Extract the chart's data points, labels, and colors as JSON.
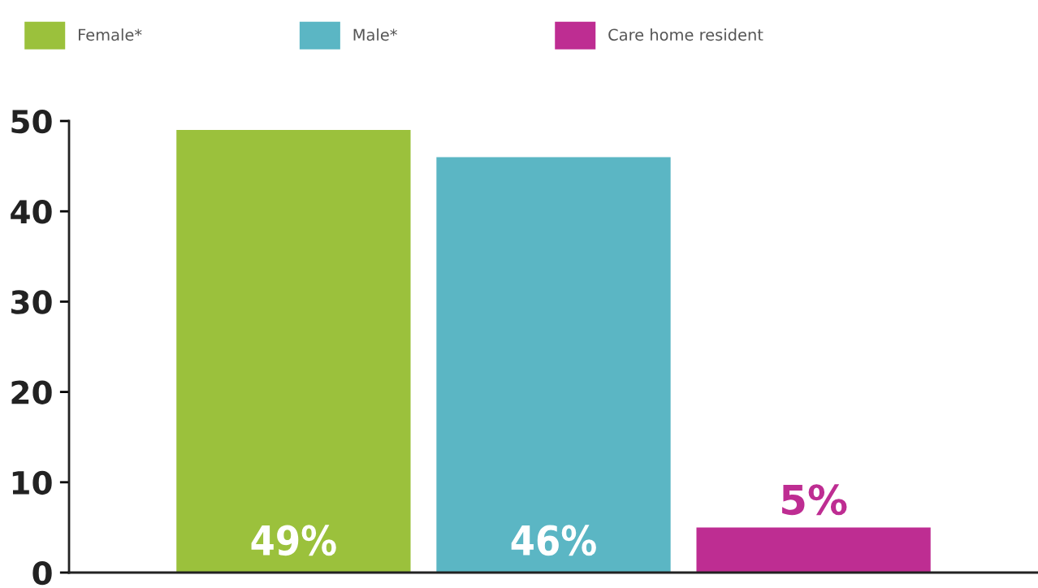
{
  "chart_data": {
    "type": "bar",
    "categories": [
      null
    ],
    "series": [
      {
        "name": "Female*",
        "color": "#9bc13c",
        "values": [
          49
        ],
        "value_labels": [
          "49%"
        ]
      },
      {
        "name": "Male*",
        "color": "#5bb6c4",
        "values": [
          46
        ],
        "value_labels": [
          "46%"
        ]
      },
      {
        "name": "Care home resident",
        "color": "#be2d92",
        "values": [
          5
        ],
        "value_labels": [
          "5%"
        ]
      }
    ],
    "ylim": [
      0,
      50
    ],
    "yticks": [
      0,
      10,
      20,
      30,
      40,
      50
    ],
    "grid": false,
    "legend": "top left"
  }
}
